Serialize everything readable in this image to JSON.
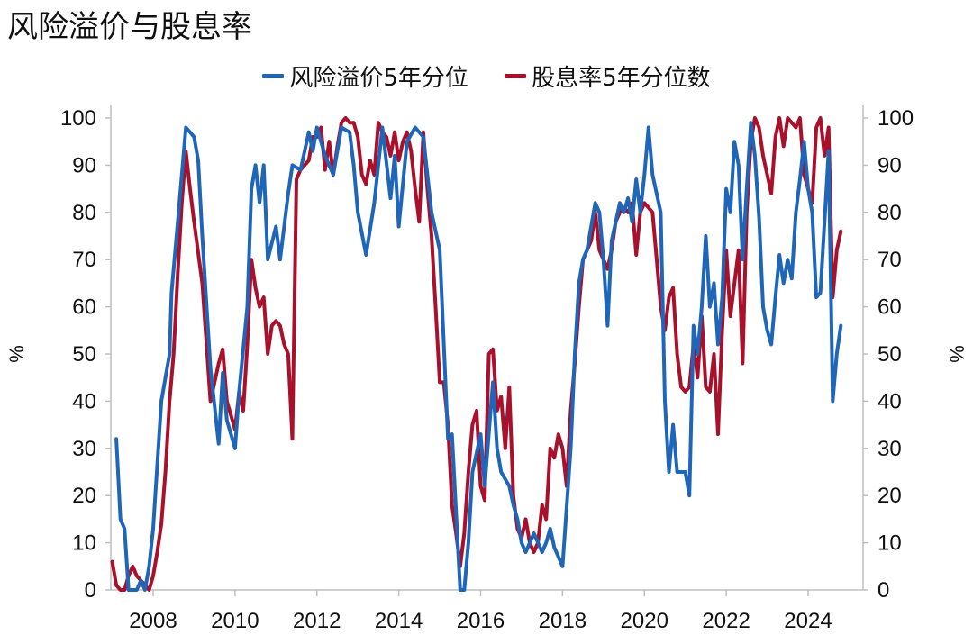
{
  "title": "风险溢价与股息率",
  "colors": {
    "series1": "#1f66b8",
    "series2": "#a8102b"
  },
  "chart_data": {
    "type": "line",
    "title": "风险溢价与股息率",
    "left_ylabel": "%",
    "right_ylabel": "%",
    "xlim": [
      2007.0,
      2025.0
    ],
    "ylim": [
      0,
      100
    ],
    "y_ticks": [
      0,
      10,
      20,
      30,
      40,
      50,
      60,
      70,
      80,
      90,
      100
    ],
    "x_ticks": [
      2008,
      2010,
      2012,
      2014,
      2016,
      2018,
      2020,
      2022,
      2024
    ],
    "legend_position": "top-center",
    "grid": false,
    "series": [
      {
        "name": "风险溢价5年分位",
        "color": "#1f66b8",
        "points": [
          [
            2007.1,
            32
          ],
          [
            2007.2,
            15
          ],
          [
            2007.3,
            13
          ],
          [
            2007.4,
            0
          ],
          [
            2007.6,
            0
          ],
          [
            2007.7,
            2
          ],
          [
            2007.8,
            0
          ],
          [
            2007.9,
            5
          ],
          [
            2008.0,
            13
          ],
          [
            2008.2,
            40
          ],
          [
            2008.4,
            50
          ],
          [
            2008.45,
            63
          ],
          [
            2008.6,
            78
          ],
          [
            2008.8,
            98
          ],
          [
            2008.9,
            97
          ],
          [
            2009.0,
            96
          ],
          [
            2009.1,
            91
          ],
          [
            2009.2,
            75
          ],
          [
            2009.4,
            47
          ],
          [
            2009.6,
            31
          ],
          [
            2009.7,
            46
          ],
          [
            2009.8,
            36
          ],
          [
            2010.0,
            30
          ],
          [
            2010.1,
            42
          ],
          [
            2010.3,
            60
          ],
          [
            2010.4,
            85
          ],
          [
            2010.5,
            90
          ],
          [
            2010.6,
            82
          ],
          [
            2010.7,
            90
          ],
          [
            2010.8,
            70
          ],
          [
            2011.0,
            77
          ],
          [
            2011.1,
            70
          ],
          [
            2011.3,
            84
          ],
          [
            2011.4,
            90
          ],
          [
            2011.6,
            89
          ],
          [
            2011.8,
            97
          ],
          [
            2011.9,
            93
          ],
          [
            2012.0,
            98
          ],
          [
            2012.2,
            92
          ],
          [
            2012.4,
            88
          ],
          [
            2012.6,
            98
          ],
          [
            2012.8,
            97
          ],
          [
            2012.9,
            90
          ],
          [
            2013.0,
            80
          ],
          [
            2013.2,
            71
          ],
          [
            2013.4,
            82
          ],
          [
            2013.6,
            98
          ],
          [
            2013.8,
            83
          ],
          [
            2013.9,
            92
          ],
          [
            2014.0,
            77
          ],
          [
            2014.2,
            95
          ],
          [
            2014.4,
            98
          ],
          [
            2014.6,
            96
          ],
          [
            2014.7,
            88
          ],
          [
            2014.8,
            80
          ],
          [
            2015.0,
            72
          ],
          [
            2015.2,
            32
          ],
          [
            2015.3,
            33
          ],
          [
            2015.5,
            0
          ],
          [
            2015.6,
            0
          ],
          [
            2015.7,
            10
          ],
          [
            2015.8,
            25
          ],
          [
            2016.0,
            33
          ],
          [
            2016.1,
            22
          ],
          [
            2016.3,
            44
          ],
          [
            2016.4,
            30
          ],
          [
            2016.5,
            25
          ],
          [
            2016.7,
            22
          ],
          [
            2016.8,
            18
          ],
          [
            2016.9,
            15
          ],
          [
            2017.0,
            10
          ],
          [
            2017.1,
            8
          ],
          [
            2017.3,
            12
          ],
          [
            2017.5,
            8
          ],
          [
            2017.6,
            10
          ],
          [
            2017.7,
            13
          ],
          [
            2017.8,
            9
          ],
          [
            2018.0,
            5
          ],
          [
            2018.2,
            30
          ],
          [
            2018.3,
            50
          ],
          [
            2018.4,
            65
          ],
          [
            2018.5,
            70
          ],
          [
            2018.6,
            72
          ],
          [
            2018.8,
            82
          ],
          [
            2018.9,
            80
          ],
          [
            2019.0,
            70
          ],
          [
            2019.1,
            56
          ],
          [
            2019.2,
            74
          ],
          [
            2019.4,
            82
          ],
          [
            2019.5,
            80
          ],
          [
            2019.6,
            83
          ],
          [
            2019.7,
            78
          ],
          [
            2019.8,
            87
          ],
          [
            2019.9,
            80
          ],
          [
            2020.0,
            88
          ],
          [
            2020.1,
            98
          ],
          [
            2020.2,
            88
          ],
          [
            2020.4,
            80
          ],
          [
            2020.5,
            40
          ],
          [
            2020.6,
            25
          ],
          [
            2020.7,
            35
          ],
          [
            2020.8,
            25
          ],
          [
            2021.0,
            25
          ],
          [
            2021.1,
            20
          ],
          [
            2021.2,
            56
          ],
          [
            2021.3,
            50
          ],
          [
            2021.4,
            60
          ],
          [
            2021.5,
            75
          ],
          [
            2021.6,
            60
          ],
          [
            2021.7,
            65
          ],
          [
            2021.8,
            52
          ],
          [
            2021.9,
            62
          ],
          [
            2022.0,
            85
          ],
          [
            2022.1,
            80
          ],
          [
            2022.2,
            95
          ],
          [
            2022.3,
            90
          ],
          [
            2022.4,
            70
          ],
          [
            2022.5,
            85
          ],
          [
            2022.6,
            99
          ],
          [
            2022.7,
            92
          ],
          [
            2022.8,
            79
          ],
          [
            2022.9,
            60
          ],
          [
            2023.0,
            55
          ],
          [
            2023.1,
            52
          ],
          [
            2023.2,
            62
          ],
          [
            2023.3,
            71
          ],
          [
            2023.4,
            65
          ],
          [
            2023.5,
            70
          ],
          [
            2023.6,
            66
          ],
          [
            2023.7,
            80
          ],
          [
            2023.8,
            87
          ],
          [
            2023.9,
            95
          ],
          [
            2024.0,
            85
          ],
          [
            2024.1,
            80
          ],
          [
            2024.2,
            62
          ],
          [
            2024.3,
            63
          ],
          [
            2024.4,
            78
          ],
          [
            2024.5,
            93
          ],
          [
            2024.6,
            40
          ],
          [
            2024.7,
            50
          ],
          [
            2024.8,
            56
          ]
        ]
      },
      {
        "name": "股息率5年分位数",
        "color": "#a8102b",
        "points": [
          [
            2007.0,
            6
          ],
          [
            2007.1,
            1
          ],
          [
            2007.2,
            0
          ],
          [
            2007.3,
            0
          ],
          [
            2007.4,
            3
          ],
          [
            2007.5,
            5
          ],
          [
            2007.6,
            3
          ],
          [
            2007.7,
            2
          ],
          [
            2007.9,
            0
          ],
          [
            2008.0,
            3
          ],
          [
            2008.1,
            8
          ],
          [
            2008.2,
            14
          ],
          [
            2008.3,
            25
          ],
          [
            2008.4,
            40
          ],
          [
            2008.5,
            50
          ],
          [
            2008.6,
            67
          ],
          [
            2008.7,
            82
          ],
          [
            2008.8,
            93
          ],
          [
            2008.9,
            85
          ],
          [
            2009.0,
            78
          ],
          [
            2009.2,
            65
          ],
          [
            2009.4,
            40
          ],
          [
            2009.6,
            48
          ],
          [
            2009.7,
            51
          ],
          [
            2009.8,
            40
          ],
          [
            2010.0,
            34
          ],
          [
            2010.1,
            42
          ],
          [
            2010.2,
            38
          ],
          [
            2010.3,
            52
          ],
          [
            2010.4,
            70
          ],
          [
            2010.5,
            64
          ],
          [
            2010.6,
            60
          ],
          [
            2010.7,
            62
          ],
          [
            2010.8,
            50
          ],
          [
            2010.9,
            56
          ],
          [
            2011.0,
            57
          ],
          [
            2011.1,
            56
          ],
          [
            2011.2,
            52
          ],
          [
            2011.3,
            50
          ],
          [
            2011.4,
            32
          ],
          [
            2011.5,
            87
          ],
          [
            2011.6,
            89
          ],
          [
            2011.8,
            91
          ],
          [
            2011.9,
            96
          ],
          [
            2012.0,
            96
          ],
          [
            2012.1,
            98
          ],
          [
            2012.2,
            89
          ],
          [
            2012.3,
            95
          ],
          [
            2012.4,
            88
          ],
          [
            2012.5,
            94
          ],
          [
            2012.6,
            99
          ],
          [
            2012.7,
            100
          ],
          [
            2012.8,
            99
          ],
          [
            2012.9,
            99
          ],
          [
            2013.0,
            96
          ],
          [
            2013.1,
            88
          ],
          [
            2013.2,
            86
          ],
          [
            2013.3,
            91
          ],
          [
            2013.4,
            88
          ],
          [
            2013.5,
            99
          ],
          [
            2013.6,
            97
          ],
          [
            2013.7,
            96
          ],
          [
            2013.8,
            92
          ],
          [
            2013.9,
            97
          ],
          [
            2014.0,
            91
          ],
          [
            2014.1,
            95
          ],
          [
            2014.2,
            97
          ],
          [
            2014.3,
            93
          ],
          [
            2014.4,
            85
          ],
          [
            2014.5,
            78
          ],
          [
            2014.6,
            97
          ],
          [
            2014.7,
            85
          ],
          [
            2014.8,
            75
          ],
          [
            2014.9,
            60
          ],
          [
            2015.0,
            44
          ],
          [
            2015.1,
            44
          ],
          [
            2015.2,
            35
          ],
          [
            2015.3,
            18
          ],
          [
            2015.4,
            12
          ],
          [
            2015.5,
            5
          ],
          [
            2015.6,
            12
          ],
          [
            2015.7,
            25
          ],
          [
            2015.8,
            35
          ],
          [
            2015.9,
            38
          ],
          [
            2016.0,
            22
          ],
          [
            2016.1,
            19
          ],
          [
            2016.2,
            50
          ],
          [
            2016.3,
            51
          ],
          [
            2016.4,
            38
          ],
          [
            2016.5,
            41
          ],
          [
            2016.6,
            30
          ],
          [
            2016.7,
            43
          ],
          [
            2016.8,
            20
          ],
          [
            2016.9,
            13
          ],
          [
            2017.0,
            11
          ],
          [
            2017.1,
            15
          ],
          [
            2017.2,
            10
          ],
          [
            2017.3,
            8
          ],
          [
            2017.4,
            10
          ],
          [
            2017.5,
            18
          ],
          [
            2017.6,
            15
          ],
          [
            2017.7,
            30
          ],
          [
            2017.8,
            28
          ],
          [
            2017.9,
            33
          ],
          [
            2018.0,
            30
          ],
          [
            2018.1,
            22
          ],
          [
            2018.2,
            38
          ],
          [
            2018.3,
            48
          ],
          [
            2018.4,
            60
          ],
          [
            2018.5,
            70
          ],
          [
            2018.6,
            72
          ],
          [
            2018.7,
            74
          ],
          [
            2018.8,
            80
          ],
          [
            2018.9,
            72
          ],
          [
            2019.0,
            70
          ],
          [
            2019.1,
            68
          ],
          [
            2019.2,
            72
          ],
          [
            2019.3,
            78
          ],
          [
            2019.4,
            80
          ],
          [
            2019.5,
            81
          ],
          [
            2019.6,
            80
          ],
          [
            2019.7,
            82
          ],
          [
            2019.8,
            71
          ],
          [
            2019.9,
            80
          ],
          [
            2020.0,
            82
          ],
          [
            2020.2,
            80
          ],
          [
            2020.3,
            70
          ],
          [
            2020.4,
            60
          ],
          [
            2020.5,
            55
          ],
          [
            2020.6,
            62
          ],
          [
            2020.7,
            64
          ],
          [
            2020.8,
            50
          ],
          [
            2020.9,
            43
          ],
          [
            2021.0,
            42
          ],
          [
            2021.1,
            43
          ],
          [
            2021.2,
            52
          ],
          [
            2021.3,
            45
          ],
          [
            2021.4,
            58
          ],
          [
            2021.5,
            43
          ],
          [
            2021.6,
            42
          ],
          [
            2021.7,
            50
          ],
          [
            2021.8,
            33
          ],
          [
            2021.9,
            55
          ],
          [
            2022.0,
            72
          ],
          [
            2022.1,
            58
          ],
          [
            2022.2,
            65
          ],
          [
            2022.3,
            72
          ],
          [
            2022.4,
            48
          ],
          [
            2022.5,
            80
          ],
          [
            2022.6,
            95
          ],
          [
            2022.7,
            100
          ],
          [
            2022.8,
            98
          ],
          [
            2022.9,
            92
          ],
          [
            2023.0,
            88
          ],
          [
            2023.1,
            84
          ],
          [
            2023.2,
            96
          ],
          [
            2023.3,
            100
          ],
          [
            2023.4,
            94
          ],
          [
            2023.5,
            100
          ],
          [
            2023.6,
            99
          ],
          [
            2023.7,
            98
          ],
          [
            2023.8,
            100
          ],
          [
            2023.9,
            88
          ],
          [
            2024.0,
            85
          ],
          [
            2024.1,
            82
          ],
          [
            2024.2,
            98
          ],
          [
            2024.3,
            100
          ],
          [
            2024.4,
            92
          ],
          [
            2024.5,
            98
          ],
          [
            2024.6,
            62
          ],
          [
            2024.7,
            72
          ],
          [
            2024.8,
            76
          ]
        ]
      }
    ]
  }
}
